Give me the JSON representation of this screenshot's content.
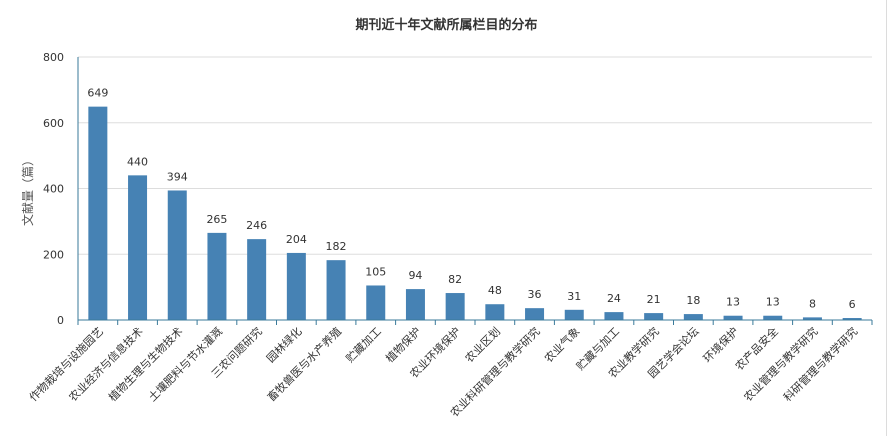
{
  "chart_data": {
    "type": "bar",
    "title": "期刊近十年文献所属栏目的分布",
    "xlabel": "",
    "ylabel": "文献量（篇）",
    "ylim": [
      0,
      800
    ],
    "yticks": [
      "0",
      "200",
      "400",
      "600",
      "800"
    ],
    "grid": true,
    "categories": [
      "作物栽培与设施园艺",
      "农业经济与信息技术",
      "植物生理与生物技术",
      "土壤肥料与节水灌溉",
      "三农问题研究",
      "园林绿化",
      "畜牧兽医与水产养殖",
      "贮藏加工",
      "植物保护",
      "农业环境保护",
      "农业区划",
      "农业科研管理与教学研究",
      "农业气象",
      "贮藏与加工",
      "农业教学研究",
      "园艺学会论坛",
      "环境保护",
      "农产品安全",
      "农业管理与教学研究",
      "科研管理与教学研究"
    ],
    "values": [
      649,
      440,
      394,
      265,
      246,
      204,
      182,
      105,
      94,
      82,
      48,
      36,
      31,
      24,
      21,
      18,
      13,
      13,
      8,
      6
    ],
    "data_labels": [
      "649",
      "440",
      "394",
      "265",
      "246",
      "204",
      "182",
      "105",
      "94",
      "82",
      "48",
      "36",
      "31",
      "24",
      "21",
      "18",
      "13",
      "13",
      "8",
      "6"
    ],
    "colors": {
      "bar": "#4682b4",
      "axis": "#3a7a9a",
      "grid": "#dddddd",
      "text": "#333333"
    }
  }
}
